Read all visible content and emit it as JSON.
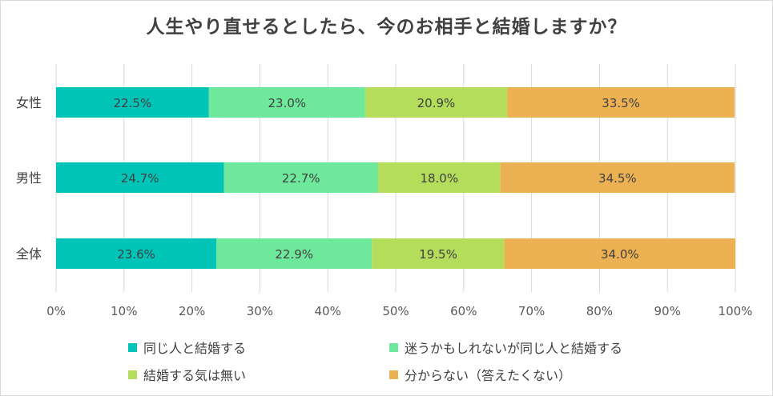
{
  "chart_data": {
    "type": "bar",
    "orientation": "horizontal",
    "stacked": true,
    "title": "人生やり直せるとしたら、今のお相手と結婚しますか？",
    "categories": [
      "女性",
      "男性",
      "全体"
    ],
    "series": [
      {
        "name": "同じ人と結婚する",
        "color": "#00c4b8",
        "values": [
          22.5,
          24.7,
          23.6
        ],
        "labels": [
          "22.5%",
          "24.7%",
          "23.6%"
        ]
      },
      {
        "name": "迷うかもしれないが同じ人と結婚する",
        "color": "#6ee89a",
        "values": [
          23.0,
          22.7,
          22.9
        ],
        "labels": [
          "23.0%",
          "22.7%",
          "22.9%"
        ]
      },
      {
        "name": "結婚する気は無い",
        "color": "#b3dd5b",
        "values": [
          20.9,
          18.0,
          19.5
        ],
        "labels": [
          "20.9%",
          "18.0%",
          "19.5%"
        ]
      },
      {
        "name": "分からない（答えたくない）",
        "color": "#ebb153",
        "values": [
          33.5,
          34.5,
          34.0
        ],
        "labels": [
          "33.5%",
          "34.5%",
          "34.0%"
        ]
      }
    ],
    "xlim": [
      0,
      100
    ],
    "xticks": [
      "0%",
      "10%",
      "20%",
      "30%",
      "40%",
      "50%",
      "60%",
      "70%",
      "80%",
      "90%",
      "100%"
    ],
    "grid": true,
    "legend_position": "bottom"
  }
}
